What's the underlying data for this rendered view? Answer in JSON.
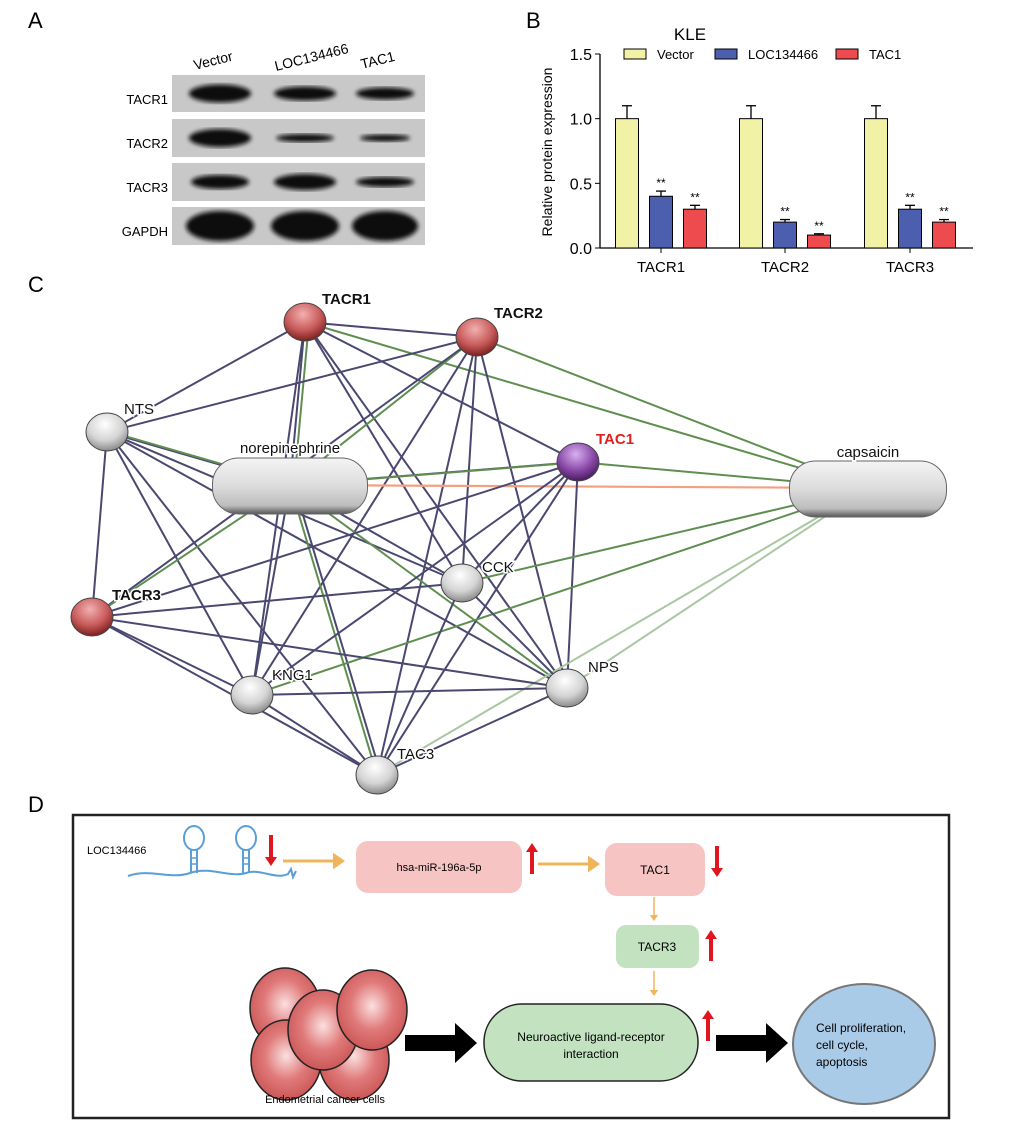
{
  "panels": {
    "a": "A",
    "b": "B",
    "c": "C",
    "d": "D"
  },
  "panel_a": {
    "lanes": [
      "Vector",
      "LOC134466",
      "TAC1"
    ],
    "rows": [
      "TACR1",
      "TACR2",
      "TACR3",
      "GAPDH"
    ]
  },
  "chart_data": {
    "type": "bar",
    "title": "KLE",
    "xlabel": "",
    "ylabel": "Relative protein expression",
    "ylim": [
      0,
      1.5
    ],
    "yticks": [
      "0.0",
      "0.5",
      "1.0",
      "1.5"
    ],
    "categories": [
      "TACR1",
      "TACR2",
      "TACR3"
    ],
    "legend_position": "top",
    "series": [
      {
        "name": "Vector",
        "color": "#f2f2a6",
        "values": [
          1.0,
          1.0,
          1.0
        ],
        "errors": [
          0.1,
          0.1,
          0.1
        ],
        "labels": [
          "",
          "",
          ""
        ]
      },
      {
        "name": "LOC134466",
        "color": "#4b5fae",
        "values": [
          0.4,
          0.2,
          0.3
        ],
        "errors": [
          0.04,
          0.02,
          0.03
        ],
        "labels": [
          "**",
          "**",
          "**"
        ]
      },
      {
        "name": "TAC1",
        "color": "#ee4b4f",
        "values": [
          0.3,
          0.1,
          0.2
        ],
        "errors": [
          0.03,
          0.01,
          0.02
        ],
        "labels": [
          "**",
          "**",
          "**"
        ]
      }
    ]
  },
  "panel_c": {
    "nodes": [
      {
        "id": "TACR1",
        "label": "TACR1",
        "color": "#c85a5a",
        "label_color": "#111111",
        "bold": true
      },
      {
        "id": "TACR2",
        "label": "TACR2",
        "color": "#c85a5a",
        "label_color": "#111111",
        "bold": true
      },
      {
        "id": "NTS",
        "label": "NTS",
        "color": "#d8d8d8",
        "label_color": "#111111",
        "bold": false
      },
      {
        "id": "NE",
        "label": "norepinephrine",
        "color": "#d8d8d8",
        "label_color": "#111111",
        "bold": false
      },
      {
        "id": "TAC1",
        "label": "TAC1",
        "color": "#8a4aa8",
        "label_color": "#e02020",
        "bold": true
      },
      {
        "id": "CAP",
        "label": "capsaicin",
        "color": "#d8d8d8",
        "label_color": "#111111",
        "bold": false
      },
      {
        "id": "CCK",
        "label": "CCK",
        "color": "#d8d8d8",
        "label_color": "#111111",
        "bold": false
      },
      {
        "id": "TACR3",
        "label": "TACR3",
        "color": "#c85a5a",
        "label_color": "#111111",
        "bold": true
      },
      {
        "id": "KNG1",
        "label": "KNG1",
        "color": "#d8d8d8",
        "label_color": "#111111",
        "bold": false
      },
      {
        "id": "NPS",
        "label": "NPS",
        "color": "#d8d8d8",
        "label_color": "#111111",
        "bold": false
      },
      {
        "id": "TAC3",
        "label": "TAC3",
        "color": "#d8d8d8",
        "label_color": "#111111",
        "bold": false
      }
    ],
    "edge_colors": {
      "dark": "#4a4870",
      "green": "#5f8f50",
      "light": "#a9c7a0",
      "orange": "#f4a080"
    },
    "edges": [
      [
        "TACR1",
        "TACR2",
        "dark"
      ],
      [
        "TACR1",
        "NTS",
        "dark"
      ],
      [
        "TACR1",
        "NE",
        "dark"
      ],
      [
        "TACR1",
        "NE",
        "green"
      ],
      [
        "TACR1",
        "TAC1",
        "dark"
      ],
      [
        "TACR1",
        "CAP",
        "green"
      ],
      [
        "TACR1",
        "CCK",
        "dark"
      ],
      [
        "TACR1",
        "NPS",
        "dark"
      ],
      [
        "TACR1",
        "KNG1",
        "dark"
      ],
      [
        "TACR2",
        "NTS",
        "dark"
      ],
      [
        "TACR2",
        "NE",
        "green"
      ],
      [
        "TACR2",
        "CAP",
        "green"
      ],
      [
        "TACR2",
        "TACR3",
        "dark"
      ],
      [
        "TACR2",
        "KNG1",
        "dark"
      ],
      [
        "TACR2",
        "TAC3",
        "dark"
      ],
      [
        "TACR2",
        "NPS",
        "dark"
      ],
      [
        "TACR2",
        "CCK",
        "dark"
      ],
      [
        "NTS",
        "NE",
        "dark"
      ],
      [
        "NTS",
        "NE",
        "green"
      ],
      [
        "NTS",
        "TACR3",
        "dark"
      ],
      [
        "NTS",
        "KNG1",
        "dark"
      ],
      [
        "NTS",
        "TAC3",
        "dark"
      ],
      [
        "NTS",
        "NPS",
        "dark"
      ],
      [
        "NTS",
        "CCK",
        "dark"
      ],
      [
        "NE",
        "TAC1",
        "dark"
      ],
      [
        "NE",
        "TAC1",
        "green"
      ],
      [
        "NE",
        "CAP",
        "orange"
      ],
      [
        "NE",
        "TACR3",
        "green"
      ],
      [
        "NE",
        "KNG1",
        "dark"
      ],
      [
        "NE",
        "TAC3",
        "green"
      ],
      [
        "NE",
        "NPS",
        "green"
      ],
      [
        "NE",
        "CCK",
        "dark"
      ],
      [
        "NE",
        "TAC3",
        "dark"
      ],
      [
        "TAC1",
        "CAP",
        "green"
      ],
      [
        "TAC1",
        "TACR3",
        "dark"
      ],
      [
        "TAC1",
        "KNG1",
        "dark"
      ],
      [
        "TAC1",
        "TAC3",
        "dark"
      ],
      [
        "TAC1",
        "NPS",
        "dark"
      ],
      [
        "TAC1",
        "CCK",
        "dark"
      ],
      [
        "CAP",
        "KNG1",
        "green"
      ],
      [
        "CAP",
        "CCK",
        "green"
      ],
      [
        "CAP",
        "TAC3",
        "light"
      ],
      [
        "CAP",
        "NPS",
        "light"
      ],
      [
        "CCK",
        "TACR3",
        "dark"
      ],
      [
        "CCK",
        "TAC3",
        "dark"
      ],
      [
        "CCK",
        "NPS",
        "dark"
      ],
      [
        "TACR3",
        "KNG1",
        "dark"
      ],
      [
        "TACR3",
        "TAC3",
        "dark"
      ],
      [
        "TACR3",
        "NPS",
        "dark"
      ],
      [
        "KNG1",
        "NPS",
        "dark"
      ],
      [
        "KNG1",
        "TAC3",
        "dark"
      ],
      [
        "NPS",
        "TAC3",
        "dark"
      ]
    ]
  },
  "panel_d": {
    "lnc_label": "LOC134466",
    "mirna": "hsa-miR-196a-5p",
    "tac1": "TAC1",
    "tacr3": "TACR3",
    "pathway_line1": "Neuroactive ligand-receptor",
    "pathway_line2": "interaction",
    "cells_label": "Endometrial cancer cells",
    "outcome_line1": "Cell  proliferation,",
    "outcome_line2": "cell cycle,",
    "outcome_line3": "apoptosis",
    "colors": {
      "pink": "#f7c4c4",
      "green": "#c2e2c0",
      "blue": "#aacbe8",
      "red_arrow": "#e0161e",
      "orange_arrow": "#f0b45a",
      "rna": "#5a9ed8"
    }
  }
}
